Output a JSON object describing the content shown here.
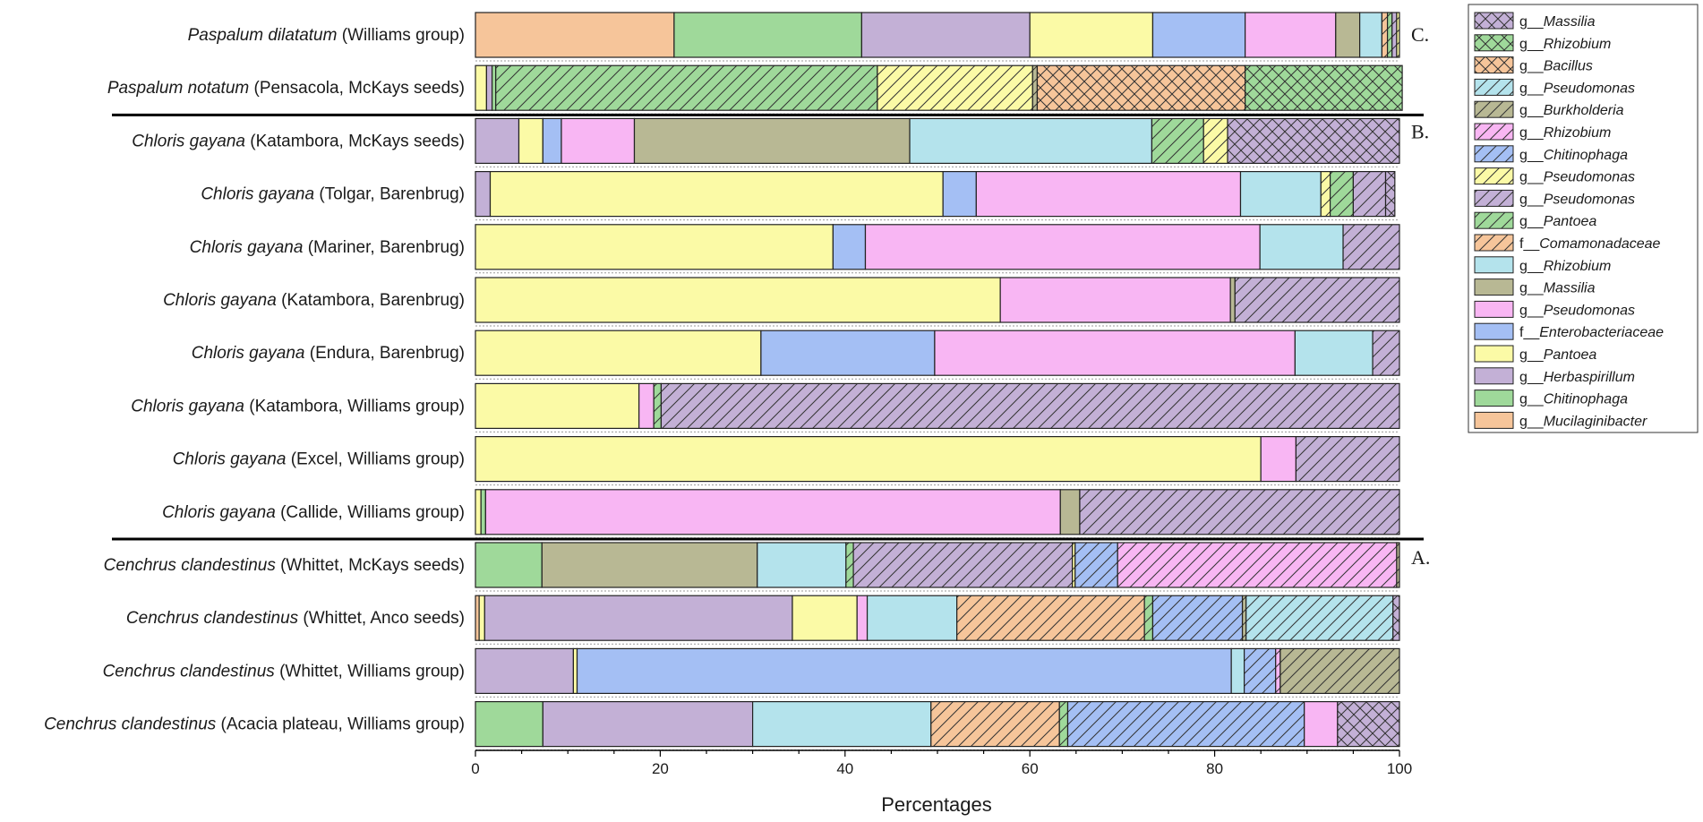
{
  "chart_data": {
    "type": "bar",
    "orientation": "horizontal",
    "stacked": true,
    "xlabel": "Percentages",
    "xlim": [
      0,
      100
    ],
    "xticks": [
      0,
      20,
      40,
      60,
      80,
      100
    ],
    "legend_position": "right",
    "sections": [
      {
        "label": "C.",
        "after_row": 1
      },
      {
        "label": "B.",
        "after_row": 9
      },
      {
        "label": "A.",
        "after_row": 13
      }
    ],
    "legend": [
      {
        "prefix": "g__",
        "taxon": "Massilia",
        "color": "#c3b0d6",
        "pattern": "cross"
      },
      {
        "prefix": "g__",
        "taxon": "Rhizobium",
        "color": "#9fd99a",
        "pattern": "cross"
      },
      {
        "prefix": "g__",
        "taxon": "Bacillus",
        "color": "#f6c59a",
        "pattern": "cross"
      },
      {
        "prefix": "g__",
        "taxon": "Pseudomonas",
        "color": "#b4e3ec",
        "pattern": "hatch"
      },
      {
        "prefix": "g__",
        "taxon": "Burkholderia",
        "color": "#b8b894",
        "pattern": "hatch"
      },
      {
        "prefix": "g__",
        "taxon": "Rhizobium",
        "color": "#f8b6f3",
        "pattern": "hatch"
      },
      {
        "prefix": "g__",
        "taxon": "Chitinophaga",
        "color": "#a4bff4",
        "pattern": "hatch"
      },
      {
        "prefix": "g__",
        "taxon": "Pseudomonas",
        "color": "#fbfaa6",
        "pattern": "hatch"
      },
      {
        "prefix": "g__",
        "taxon": "Pseudomonas",
        "color": "#c3b0d6",
        "pattern": "hatch"
      },
      {
        "prefix": "g__",
        "taxon": "Pantoea",
        "color": "#9fd99a",
        "pattern": "hatch"
      },
      {
        "prefix": "f__",
        "taxon": "Comamonadaceae",
        "color": "#f6c59a",
        "pattern": "hatch"
      },
      {
        "prefix": "g__",
        "taxon": "Rhizobium",
        "color": "#b4e3ec",
        "pattern": "solid"
      },
      {
        "prefix": "g__",
        "taxon": "Massilia",
        "color": "#b8b894",
        "pattern": "solid"
      },
      {
        "prefix": "g__",
        "taxon": "Pseudomonas",
        "color": "#f8b6f3",
        "pattern": "solid"
      },
      {
        "prefix": "f__",
        "taxon": "Enterobacteriaceae",
        "color": "#a4bff4",
        "pattern": "solid"
      },
      {
        "prefix": "g__",
        "taxon": "Pantoea",
        "color": "#fbfaa6",
        "pattern": "solid"
      },
      {
        "prefix": "g__",
        "taxon": "Herbaspirillum",
        "color": "#c3b0d6",
        "pattern": "solid"
      },
      {
        "prefix": "g__",
        "taxon": "Chitinophaga",
        "color": "#9fd99a",
        "pattern": "solid"
      },
      {
        "prefix": "g__",
        "taxon": "Mucilaginibacter",
        "color": "#f6c59a",
        "pattern": "solid"
      }
    ],
    "rows": [
      {
        "species": "Paspalum dilatatum",
        "detail": " (Williams group)",
        "segments": [
          [
            18,
            21.5
          ],
          [
            17,
            20.3
          ],
          [
            16,
            18.2
          ],
          [
            15,
            13.3
          ],
          [
            14,
            10
          ],
          [
            13,
            9.8
          ],
          [
            12,
            2.6
          ],
          [
            11,
            2.4
          ],
          [
            10,
            0.6
          ],
          [
            9,
            0.5
          ],
          [
            8,
            0.5
          ],
          [
            7,
            0.3
          ]
        ]
      },
      {
        "species": "Paspalum notatum",
        "detail": " (Pensacola, McKays seeds)",
        "segments": [
          [
            15,
            1.2
          ],
          [
            16,
            0.6
          ],
          [
            17,
            0.4
          ],
          [
            9,
            41.3
          ],
          [
            7,
            16.8
          ],
          [
            4,
            0.5
          ],
          [
            2,
            22.5
          ],
          [
            1,
            17
          ]
        ]
      },
      {
        "species": "Chloris gayana",
        "detail": " (Katambora, McKays seeds)",
        "segments": [
          [
            16,
            4.7
          ],
          [
            15,
            2.6
          ],
          [
            14,
            2
          ],
          [
            13,
            7.9
          ],
          [
            12,
            29.8
          ],
          [
            11,
            26.2
          ],
          [
            9,
            5.6
          ],
          [
            7,
            2.6
          ],
          [
            0,
            18.6
          ]
        ]
      },
      {
        "species": "Chloris gayana",
        "detail": " (Tolgar, Barenbrug)",
        "segments": [
          [
            16,
            1.6
          ],
          [
            15,
            49
          ],
          [
            14,
            3.6
          ],
          [
            13,
            28.6
          ],
          [
            11,
            8.7
          ],
          [
            7,
            1
          ],
          [
            9,
            2.5
          ],
          [
            8,
            3.5
          ],
          [
            0,
            1
          ]
        ]
      },
      {
        "species": "Chloris gayana",
        "detail": " (Mariner, Barenbrug)",
        "segments": [
          [
            15,
            38.7
          ],
          [
            14,
            3.5
          ],
          [
            13,
            42.7
          ],
          [
            11,
            9
          ],
          [
            8,
            6.1
          ]
        ]
      },
      {
        "species": "Chloris gayana",
        "detail": " (Katambora, Barenbrug)",
        "segments": [
          [
            15,
            56.8
          ],
          [
            13,
            24.9
          ],
          [
            12,
            0.5
          ],
          [
            8,
            17.8
          ]
        ]
      },
      {
        "species": "Chloris gayana",
        "detail": " (Endura, Barenbrug)",
        "segments": [
          [
            15,
            30.9
          ],
          [
            14,
            18.8
          ],
          [
            13,
            39
          ],
          [
            11,
            8.4
          ],
          [
            8,
            2.9
          ]
        ]
      },
      {
        "species": "Chloris gayana",
        "detail": " (Katambora, Williams group)",
        "segments": [
          [
            15,
            17.7
          ],
          [
            13,
            1.6
          ],
          [
            9,
            0.8
          ],
          [
            8,
            79.9
          ]
        ]
      },
      {
        "species": "Chloris gayana",
        "detail": " (Excel, Williams group)",
        "segments": [
          [
            15,
            85
          ],
          [
            13,
            3.8
          ],
          [
            8,
            11.2
          ]
        ]
      },
      {
        "species": "Chloris gayana",
        "detail": " (Callide, Williams group)",
        "segments": [
          [
            15,
            0.6
          ],
          [
            17,
            0.5
          ],
          [
            13,
            62.2
          ],
          [
            12,
            2.1
          ],
          [
            8,
            34.6
          ]
        ]
      },
      {
        "species": "Cenchrus clandestinus",
        "detail": " (Whittet, McKays seeds)",
        "segments": [
          [
            17,
            7.2
          ],
          [
            12,
            23.3
          ],
          [
            11,
            9.6
          ],
          [
            9,
            0.8
          ],
          [
            8,
            23.7
          ],
          [
            7,
            0.3
          ],
          [
            6,
            4.6
          ],
          [
            5,
            30.2
          ],
          [
            4,
            0.3
          ]
        ]
      },
      {
        "species": "Cenchrus clandestinus",
        "detail": " (Whittet, Anco seeds)",
        "segments": [
          [
            18,
            0.4
          ],
          [
            15,
            0.6
          ],
          [
            16,
            33.3
          ],
          [
            15,
            7
          ],
          [
            13,
            1.1
          ],
          [
            11,
            9.7
          ],
          [
            10,
            20.3
          ],
          [
            9,
            0.9
          ],
          [
            6,
            9.7
          ],
          [
            4,
            0.4
          ],
          [
            3,
            15.9
          ],
          [
            0,
            0.7
          ]
        ]
      },
      {
        "species": "Cenchrus clandestinus",
        "detail": " (Whittet, Williams group)",
        "segments": [
          [
            16,
            10.6
          ],
          [
            15,
            0.4
          ],
          [
            14,
            70.8
          ],
          [
            11,
            1.4
          ],
          [
            6,
            3.4
          ],
          [
            5,
            0.5
          ],
          [
            4,
            12.9
          ]
        ]
      },
      {
        "species": "Cenchrus clandestinus",
        "detail": " (Acacia plateau, Williams group)",
        "segments": [
          [
            17,
            7.3
          ],
          [
            16,
            22.7
          ],
          [
            11,
            19.3
          ],
          [
            10,
            13.9
          ],
          [
            9,
            0.9
          ],
          [
            6,
            25.6
          ],
          [
            13,
            3.6
          ],
          [
            0,
            6.7
          ]
        ]
      }
    ]
  }
}
